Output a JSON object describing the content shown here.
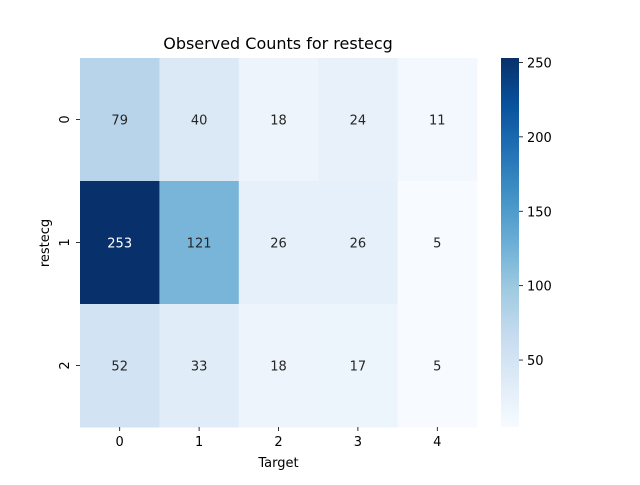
{
  "chart_data": {
    "type": "heatmap",
    "title": "Observed Counts for restecg",
    "xlabel": "Target",
    "ylabel": "restecg",
    "x_categories": [
      "0",
      "1",
      "2",
      "3",
      "4"
    ],
    "y_categories": [
      "0",
      "1",
      "2"
    ],
    "values": [
      [
        79,
        40,
        18,
        24,
        11
      ],
      [
        253,
        121,
        26,
        26,
        5
      ],
      [
        52,
        33,
        18,
        17,
        5
      ]
    ],
    "colormap": "Blues",
    "vmin": 5,
    "vmax": 253,
    "colorbar_ticks": [
      50,
      100,
      150,
      200,
      250
    ],
    "annotations": true,
    "grid": false
  }
}
